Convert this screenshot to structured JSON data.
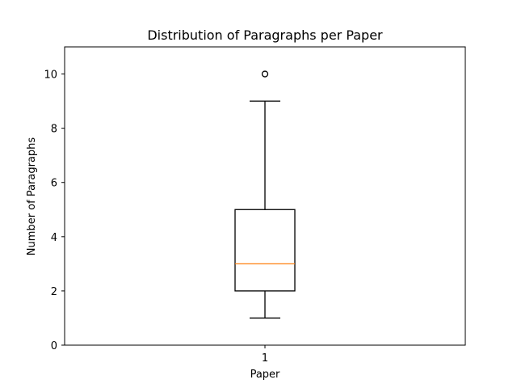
{
  "chart_data": {
    "type": "box",
    "title": "Distribution of Paragraphs per Paper",
    "xlabel": "Paper",
    "ylabel": "Number of Paragraphs",
    "categories": [
      "1"
    ],
    "ylim": [
      0,
      11
    ],
    "yticks": [
      0,
      2,
      4,
      6,
      8,
      10
    ],
    "grid": false,
    "series": [
      {
        "whisker_low": 1,
        "q1": 2,
        "median": 3,
        "q3": 5,
        "whisker_high": 9,
        "outliers": [
          10
        ]
      }
    ],
    "colors": {
      "box": "#000000",
      "median": "#ff7f0e",
      "outlier": "#000000"
    }
  }
}
